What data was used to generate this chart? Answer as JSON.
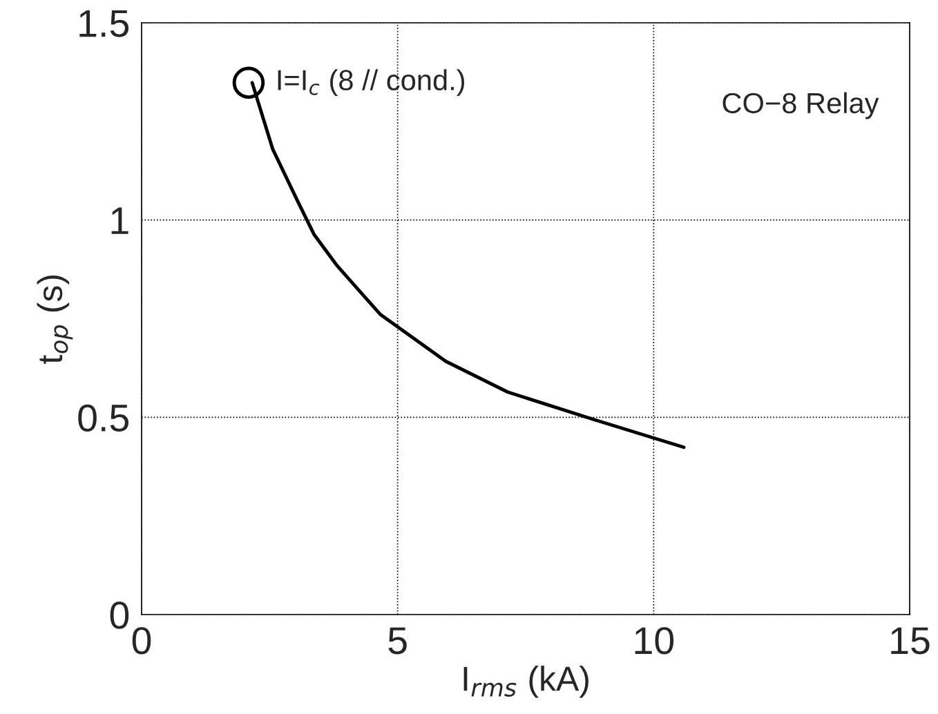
{
  "chart_data": {
    "type": "line",
    "xlabel": "I$_{rms}$ (kA)",
    "ylabel": "t$_{op}$ (s)",
    "xlim": [
      0,
      15
    ],
    "ylim": [
      0,
      1.5
    ],
    "xticks": [
      0,
      5,
      10,
      15
    ],
    "yticks": [
      0,
      0.5,
      1,
      1.5
    ],
    "grid": true,
    "line_style": "solid",
    "marker": "none",
    "series": [
      {
        "color": "#000000",
        "x": [
          2.16,
          2.56,
          3.04,
          3.37,
          3.82,
          4.66,
          5.94,
          7.15,
          8.84,
          10.59
        ],
        "values": [
          1.348,
          1.18,
          1.05,
          0.963,
          0.884,
          0.761,
          0.642,
          0.564,
          0.494,
          0.424
        ]
      },
      {
        "type": "scatter",
        "marker": "circle",
        "color": "#000000",
        "x": [
          2.09
        ],
        "values": [
          1.348
        ]
      }
    ],
    "annotations": [
      {
        "text": "I=I$_{c}$ (8 // cond.)",
        "x": 2.09,
        "y": 1.348
      },
      "CO−8 Relay"
    ]
  }
}
